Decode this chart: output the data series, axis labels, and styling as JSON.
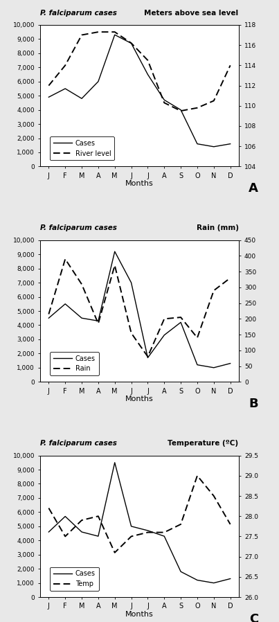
{
  "months": [
    "J",
    "F",
    "M",
    "A",
    "M",
    "J",
    "J",
    "A",
    "S",
    "O",
    "N",
    "D"
  ],
  "cases_A": [
    4900,
    5500,
    4800,
    6000,
    9300,
    8700,
    6500,
    4700,
    4000,
    1600,
    1400,
    1600
  ],
  "river_level": [
    112,
    114,
    117,
    117.3,
    117.3,
    116.2,
    114.5,
    110.3,
    109.5,
    109.8,
    110.5,
    114
  ],
  "river_ylim": [
    104,
    118
  ],
  "river_yticks": [
    104,
    106,
    108,
    110,
    112,
    114,
    116,
    118
  ],
  "cases_B": [
    4500,
    5500,
    4500,
    4300,
    9200,
    7000,
    1700,
    3300,
    4200,
    1200,
    1000,
    1300
  ],
  "rain": [
    215,
    390,
    310,
    185,
    370,
    155,
    80,
    200,
    205,
    140,
    290,
    330
  ],
  "rain_ylim": [
    0,
    450
  ],
  "rain_yticks": [
    0,
    50,
    100,
    150,
    200,
    250,
    300,
    350,
    400,
    450
  ],
  "cases_C": [
    4600,
    5700,
    4600,
    4300,
    9500,
    5000,
    4700,
    4300,
    1800,
    1200,
    1000,
    1300
  ],
  "temp": [
    28.2,
    27.5,
    27.9,
    28.0,
    27.1,
    27.5,
    27.6,
    27.6,
    27.8,
    29.0,
    28.5,
    27.8
  ],
  "temp_ylim": [
    26.0,
    29.5
  ],
  "temp_yticks": [
    26.0,
    26.5,
    27.0,
    27.5,
    28.0,
    28.5,
    29.0,
    29.5
  ],
  "cases_ylim": [
    0,
    10000
  ],
  "cases_yticks": [
    0,
    1000,
    2000,
    3000,
    4000,
    5000,
    6000,
    7000,
    8000,
    9000,
    10000
  ],
  "xlabel": "Months",
  "label_cases": "Cases",
  "label_river": "River level",
  "label_rain": "Rain",
  "label_temp": "Temp",
  "panel_labels": [
    "A",
    "B",
    "C"
  ]
}
